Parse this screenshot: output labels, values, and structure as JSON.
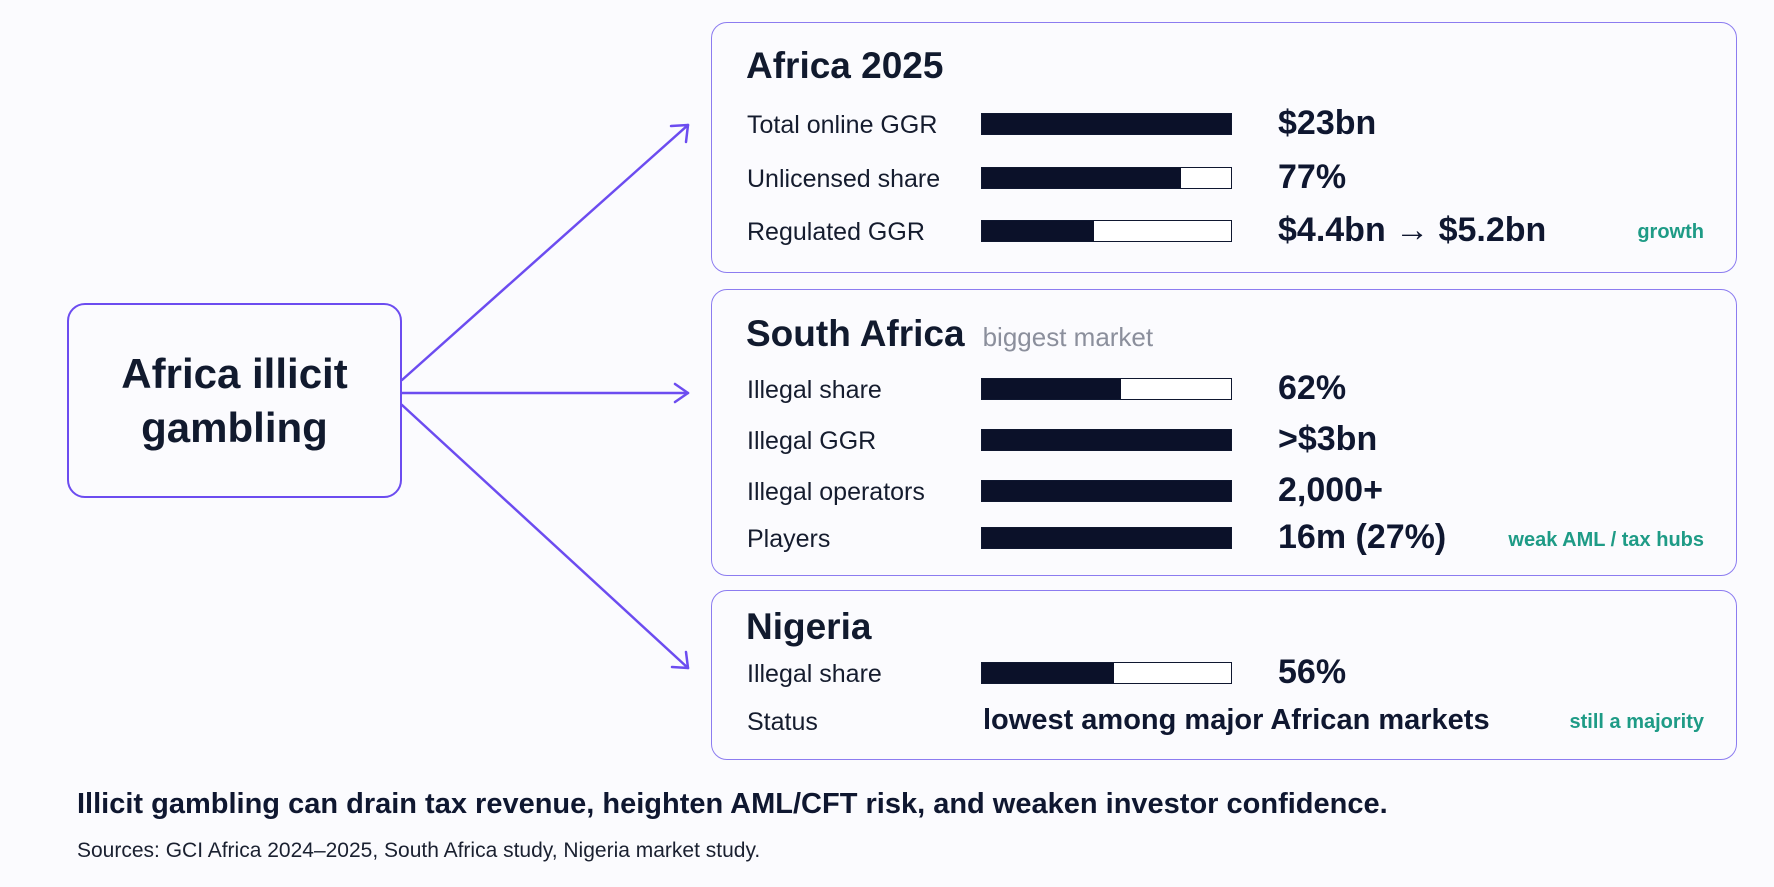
{
  "root": {
    "label": "Africa illicit gambling"
  },
  "panels": [
    {
      "title": "Africa 2025",
      "subtitle": "",
      "note": "growth",
      "rows": [
        {
          "label": "Total online GGR",
          "value": "$23bn",
          "bar_fraction": 1.0
        },
        {
          "label": "Unlicensed share",
          "value": "77%",
          "bar_fraction": 0.8
        },
        {
          "label": "Regulated GGR",
          "value": "$4.4bn → $5.2bn",
          "bar_fraction": 0.45
        }
      ]
    },
    {
      "title": "South Africa",
      "subtitle": "biggest market",
      "note": "weak AML / tax hubs",
      "rows": [
        {
          "label": "Illegal share",
          "value": "62%",
          "bar_fraction": 0.56
        },
        {
          "label": "Illegal GGR",
          "value": ">$3bn",
          "bar_fraction": 1.0
        },
        {
          "label": "Illegal operators",
          "value": "2,000+",
          "bar_fraction": 1.0
        },
        {
          "label": "Players",
          "value": "16m (27%)",
          "bar_fraction": 1.0
        }
      ]
    },
    {
      "title": "Nigeria",
      "subtitle": "",
      "note": "still a majority",
      "rows": [
        {
          "label": "Illegal share",
          "value": "56%",
          "bar_fraction": 0.53
        },
        {
          "label": "Status",
          "text": "lowest among major African markets"
        }
      ]
    }
  ],
  "takeaway": "Illicit gambling can drain tax revenue, heighten AML/CFT risk, and weaken investor confidence.",
  "sources": "Sources: GCI Africa 2024–2025, South Africa study, Nigeria market study.",
  "colors": {
    "accent": "#6c4cf0",
    "panel_border": "#8c7cf0",
    "bar": "#0b1129",
    "note": "#1e9b86",
    "subtitle": "#8b8f9c"
  }
}
